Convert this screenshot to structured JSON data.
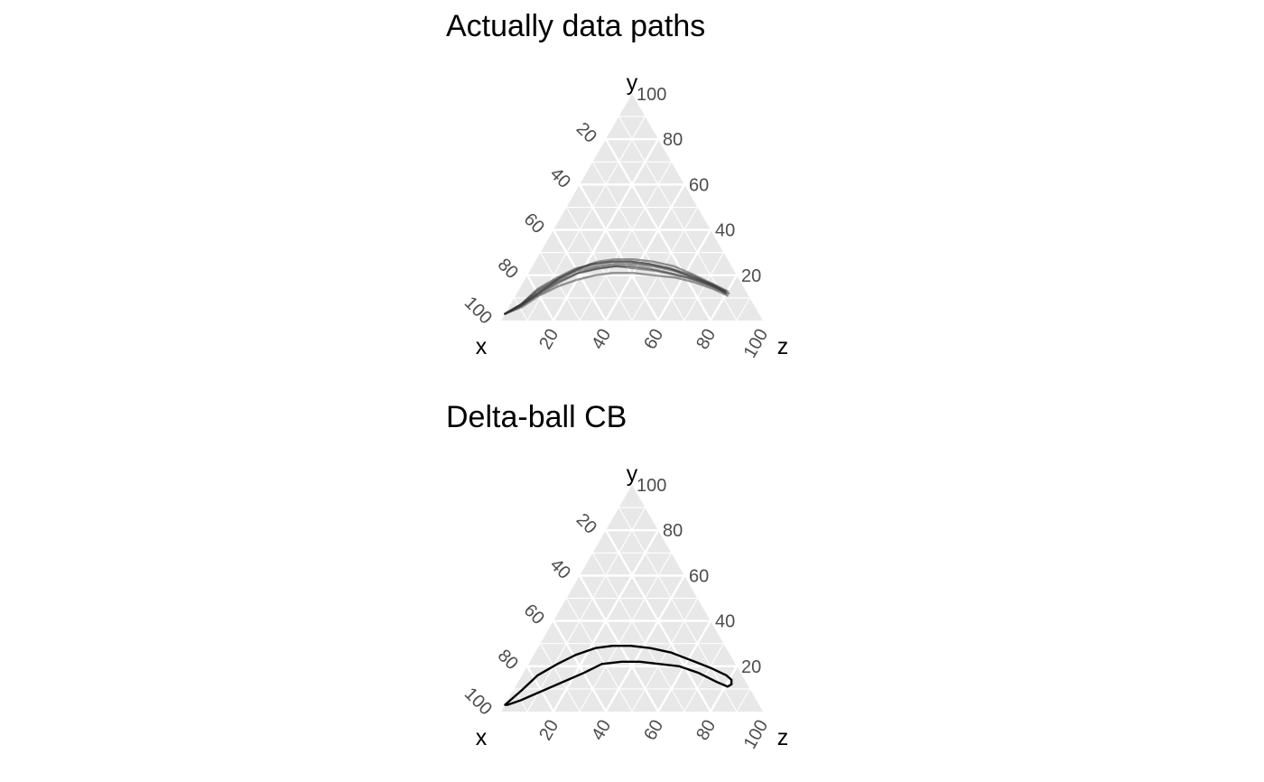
{
  "chart_data": [
    {
      "type": "line",
      "chart_kind": "ternary",
      "title": "Actually data paths",
      "axes": {
        "left": "x",
        "top": "y",
        "right": "z"
      },
      "axis_range": [
        0,
        100
      ],
      "ticks": [
        20,
        40,
        60,
        80,
        100
      ],
      "grid": true,
      "panel_color": "#e8e8e8",
      "grid_color": "#ffffff",
      "series_color": "#333333",
      "series_opacity": 0.5,
      "series": [
        {
          "points": [
            [
              97,
              3,
              0
            ],
            [
              90,
              6,
              4
            ],
            [
              80,
              12,
              8
            ],
            [
              70,
              17,
              13
            ],
            [
              60,
              21,
              19
            ],
            [
              52,
              23,
              25
            ],
            [
              45,
              24,
              31
            ],
            [
              38,
              24,
              38
            ],
            [
              32,
              23,
              45
            ],
            [
              25,
              21,
              54
            ],
            [
              19,
              19,
              62
            ],
            [
              12,
              15,
              73
            ],
            [
              8,
              12,
              80
            ]
          ]
        },
        {
          "points": [
            [
              97,
              3,
              0
            ],
            [
              89,
              7,
              4
            ],
            [
              80,
              13,
              7
            ],
            [
              70,
              18,
              12
            ],
            [
              61,
              22,
              17
            ],
            [
              53,
              25,
              22
            ],
            [
              45,
              26,
              29
            ],
            [
              38,
              26,
              36
            ],
            [
              31,
              25,
              44
            ],
            [
              24,
              23,
              53
            ],
            [
              17,
              19,
              64
            ],
            [
              11,
              16,
              73
            ],
            [
              8,
              13,
              79
            ]
          ]
        },
        {
          "points": [
            [
              97,
              3,
              0
            ],
            [
              89,
              7,
              4
            ],
            [
              79,
              13,
              8
            ],
            [
              69,
              18,
              13
            ],
            [
              60,
              22,
              18
            ],
            [
              51,
              24,
              25
            ],
            [
              44,
              25,
              31
            ],
            [
              37,
              25,
              38
            ],
            [
              30,
              24,
              46
            ],
            [
              23,
              22,
              55
            ],
            [
              17,
              19,
              64
            ],
            [
              11,
              15,
              74
            ],
            [
              8,
              12,
              80
            ]
          ]
        },
        {
          "points": [
            [
              97,
              3,
              0
            ],
            [
              89,
              6,
              5
            ],
            [
              80,
              11,
              9
            ],
            [
              71,
              15,
              14
            ],
            [
              62,
              18,
              20
            ],
            [
              54,
              20,
              26
            ],
            [
              47,
              21,
              32
            ],
            [
              39,
              21,
              40
            ],
            [
              32,
              20,
              48
            ],
            [
              24,
              19,
              57
            ],
            [
              18,
              17,
              65
            ],
            [
              12,
              14,
              74
            ],
            [
              8,
              11,
              81
            ]
          ]
        },
        {
          "points": [
            [
              97,
              3,
              0
            ],
            [
              88,
              7,
              5
            ],
            [
              78,
              13,
              9
            ],
            [
              68,
              19,
              13
            ],
            [
              59,
              23,
              18
            ],
            [
              50,
              26,
              24
            ],
            [
              43,
              27,
              30
            ],
            [
              36,
              27,
              37
            ],
            [
              29,
              26,
              45
            ],
            [
              22,
              24,
              54
            ],
            [
              16,
              20,
              64
            ],
            [
              11,
              16,
              73
            ],
            [
              7,
              13,
              80
            ]
          ]
        },
        {
          "points": [
            [
              97,
              3,
              0
            ],
            [
              89,
              7,
              4
            ],
            [
              79,
              12,
              9
            ],
            [
              69,
              17,
              14
            ],
            [
              60,
              21,
              19
            ],
            [
              51,
              23,
              26
            ],
            [
              44,
              24,
              32
            ],
            [
              37,
              23,
              40
            ],
            [
              30,
              22,
              48
            ],
            [
              23,
              20,
              57
            ],
            [
              17,
              18,
              65
            ],
            [
              11,
              15,
              74
            ],
            [
              8,
              13,
              79
            ]
          ]
        },
        {
          "points": [
            [
              97,
              3,
              0
            ],
            [
              89,
              7,
              4
            ],
            [
              79,
              14,
              7
            ],
            [
              69,
              19,
              12
            ],
            [
              60,
              23,
              17
            ],
            [
              51,
              25,
              24
            ],
            [
              44,
              26,
              30
            ],
            [
              37,
              26,
              37
            ],
            [
              31,
              25,
              44
            ],
            [
              24,
              23,
              53
            ],
            [
              17,
              20,
              63
            ],
            [
              12,
              16,
              72
            ],
            [
              7,
              12,
              81
            ]
          ]
        }
      ]
    },
    {
      "type": "line",
      "chart_kind": "ternary",
      "title": "Delta-ball CB",
      "axes": {
        "left": "x",
        "top": "y",
        "right": "z"
      },
      "axis_range": [
        0,
        100
      ],
      "ticks": [
        20,
        40,
        60,
        80,
        100
      ],
      "grid": true,
      "panel_color": "#e8e8e8",
      "grid_color": "#ffffff",
      "series_color": "#000000",
      "series_opacity": 1,
      "series": [
        {
          "closed": true,
          "points": [
            [
              97,
              3,
              0
            ],
            [
              88,
              9,
              3
            ],
            [
              78,
              16,
              6
            ],
            [
              68,
              21,
              11
            ],
            [
              59,
              25,
              16
            ],
            [
              50,
              28,
              22
            ],
            [
              43,
              29,
              28
            ],
            [
              36,
              29,
              35
            ],
            [
              29,
              28,
              43
            ],
            [
              22,
              26,
              52
            ],
            [
              15,
              22,
              63
            ],
            [
              10,
              19,
              71
            ],
            [
              6,
              16,
              78
            ],
            [
              5,
              14,
              81
            ],
            [
              6,
              12,
              82
            ],
            [
              8,
              11,
              81
            ],
            [
              11,
              13,
              76
            ],
            [
              16,
              17,
              67
            ],
            [
              22,
              20,
              58
            ],
            [
              29,
              21,
              50
            ],
            [
              36,
              22,
              42
            ],
            [
              43,
              22,
              35
            ],
            [
              51,
              21,
              28
            ],
            [
              60,
              17,
              23
            ],
            [
              70,
              13,
              17
            ],
            [
              80,
              9,
              11
            ],
            [
              90,
              5,
              5
            ],
            [
              96,
              3,
              1
            ]
          ]
        }
      ]
    }
  ]
}
